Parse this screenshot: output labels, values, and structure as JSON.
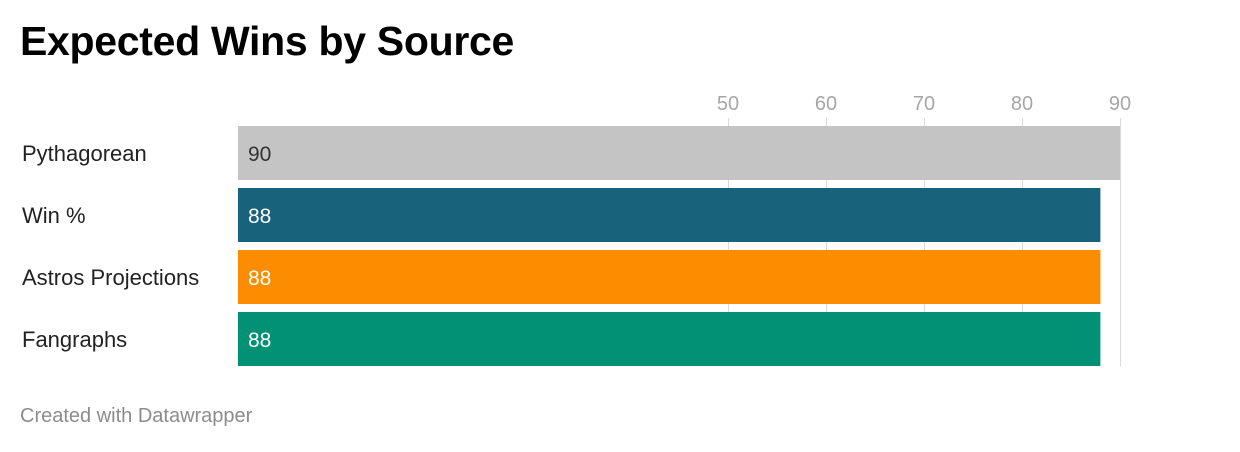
{
  "title": "Expected Wins by Source",
  "footer": "Created with Datawrapper",
  "chart_data": {
    "type": "bar",
    "orientation": "horizontal",
    "title": "Expected Wins by Source",
    "xlabel": "",
    "ylabel": "",
    "x_ticks": [
      50,
      60,
      70,
      80,
      90
    ],
    "grid": true,
    "categories": [
      "Pythagorean",
      "Win %",
      "Astros Projections",
      "Fangraphs"
    ],
    "values": [
      90,
      88,
      88,
      88
    ],
    "value_labels": [
      "90",
      "88",
      "88",
      "88"
    ],
    "colors": [
      "#c4c4c4",
      "#18627c",
      "#fc8c00",
      "#029174"
    ],
    "label_colors": [
      "#333333",
      "#ffffff",
      "#ffffff",
      "#ffffff"
    ]
  }
}
